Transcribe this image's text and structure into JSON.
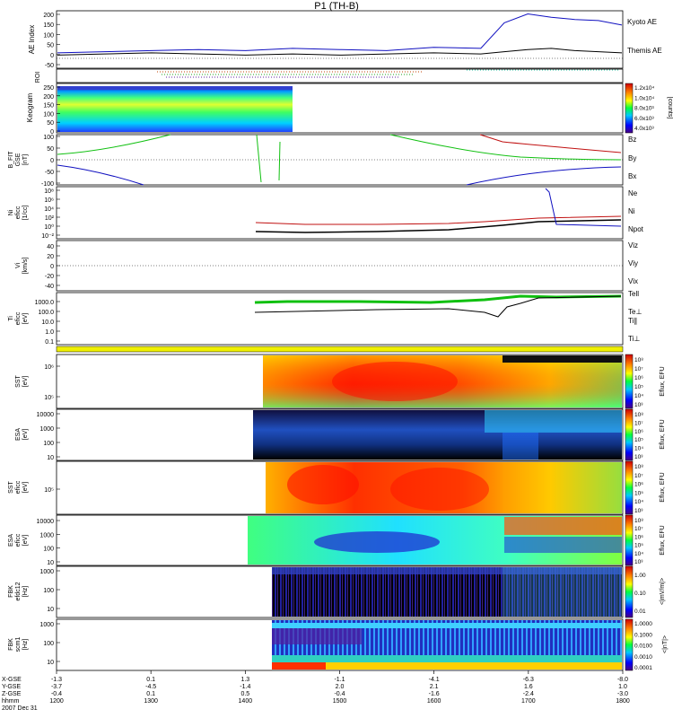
{
  "title": "P1 (TH-B)",
  "colors": {
    "kyoto": "#1010c0",
    "themis": "#000000",
    "bz": "#c01010",
    "by": "#10c010",
    "bx": "#1010c0",
    "ne": "#c01010",
    "npot": "#1010c0",
    "tell": "#000000",
    "tepar": "#10c010"
  },
  "time_axis": {
    "labels": {
      "x": "X-GSE",
      "y": "Y-GSE",
      "z": "Z-GSE",
      "hhmm": "hhmm",
      "date": "2007 Dec 31"
    },
    "ticks": [
      {
        "x": "-1.3",
        "y": "-3.7",
        "z": "-0.4",
        "t": "1200"
      },
      {
        "x": "0.1",
        "y": "-4.5",
        "z": "0.1",
        "t": "1300"
      },
      {
        "x": "1.3",
        "y": "-1.4",
        "z": "0.5",
        "t": "1400"
      },
      {
        "x": "-1.1",
        "y": "2.0",
        "z": "-0.4",
        "t": "1500"
      },
      {
        "x": "-4.1",
        "y": "2.1",
        "z": "-1.6",
        "t": "1600"
      },
      {
        "x": "-6.3",
        "y": "1.6",
        "z": "-2.4",
        "t": "1700"
      },
      {
        "x": "-8.0",
        "y": "1.0",
        "z": "-3.0",
        "t": "1800"
      }
    ]
  },
  "panels": {
    "ae": {
      "ylabel": "AE Index",
      "yticks": [
        "200",
        "150",
        "100",
        "50",
        "0",
        "-50"
      ],
      "legend": [
        "Kyoto AE",
        "Themis AE"
      ]
    },
    "roi": {
      "ylabel": "ROI"
    },
    "keogram": {
      "ylabel": "Keogram",
      "yticks": [
        "250",
        "200",
        "150",
        "100",
        "50",
        "0"
      ],
      "cbar_ticks": [
        "1.2x10⁴",
        "1.0x10⁴",
        "8.0x10³",
        "6.0x10³",
        "4.0x10³"
      ],
      "cbar_label": "[counts]"
    },
    "bfit": {
      "ylabel": "B_FIT",
      "ylabel2": "GSE",
      "ylabel3": "[nT]",
      "yticks": [
        "100",
        "50",
        "0",
        "-50",
        "-100"
      ],
      "legend": [
        "Bz",
        "By",
        "Bx"
      ]
    },
    "ni": {
      "ylabel": "Ni",
      "ylabel2": "eficc",
      "ylabel3": "[1/cc]",
      "yticks": [
        "10⁸",
        "10⁶",
        "10⁴",
        "10²",
        "10⁰",
        "10⁻²"
      ],
      "legend": [
        "Ne",
        "Ni",
        "Npot"
      ]
    },
    "vi": {
      "ylabel": "Vi",
      "ylabel2": "[km/s]",
      "yticks": [
        "40",
        "20",
        "0",
        "-20",
        "-40"
      ],
      "legend": [
        "Viz",
        "Viy",
        "Vix"
      ]
    },
    "ti": {
      "ylabel": "Ti",
      "ylabel2": "eficc",
      "ylabel3": "[eV]",
      "yticks": [
        "1000.0",
        "100.0",
        "10.0",
        "1.0",
        "0.1"
      ],
      "legend": [
        "Tell",
        "Te⊥",
        "Ti∥",
        "Ti⊥"
      ]
    },
    "sst1": {
      "ylabel": "SST",
      "ylabel2": "[eV]",
      "yticks": [
        "10⁶",
        "10⁵"
      ],
      "cbar_ticks": [
        "10⁸",
        "10⁷",
        "10⁶",
        "10⁵",
        "10⁴",
        "10³"
      ],
      "cbar_label": "Eflux, EFU"
    },
    "esa1": {
      "ylabel": "ESA",
      "ylabel2": "[eV]",
      "yticks": [
        "10000",
        "1000",
        "100",
        "10"
      ],
      "cbar_ticks": [
        "10⁸",
        "10⁷",
        "10⁶",
        "10⁵",
        "10⁴",
        "10³"
      ],
      "cbar_label": "Eflux, EFU"
    },
    "sst2": {
      "ylabel": "SST",
      "ylabel2": "eficc",
      "ylabel3": "[eV]",
      "yticks": [
        "10⁵"
      ],
      "cbar_ticks": [
        "10⁸",
        "10⁷",
        "10⁶",
        "10⁵",
        "10⁴",
        "10³"
      ],
      "cbar_label": "Eflux, EFU"
    },
    "esa2": {
      "ylabel": "ESA",
      "ylabel2": "eficc",
      "ylabel3": "[eV]",
      "yticks": [
        "10000",
        "1000",
        "100",
        "10"
      ],
      "cbar_ticks": [
        "10⁸",
        "10⁷",
        "10⁶",
        "10⁵",
        "10⁴",
        "10³"
      ],
      "cbar_label": "Eflux, EFU"
    },
    "fbk1": {
      "ylabel": "FBK",
      "ylabel2": "efdc12",
      "ylabel3": "[Hz]",
      "yticks": [
        "1000",
        "100",
        "10"
      ],
      "cbar_ticks": [
        "1.00",
        "0.10",
        "0.01"
      ],
      "cbar_label": "<|mV/m|>"
    },
    "fbk2": {
      "ylabel": "FBK",
      "ylabel2": "scm1",
      "ylabel3": "[Hz]",
      "yticks": [
        "1000",
        "100",
        "10"
      ],
      "cbar_ticks": [
        "1.0000",
        "0.1000",
        "0.0100",
        "0.0010",
        "0.0001"
      ],
      "cbar_label": "<|nT|>"
    }
  },
  "chart_data": {
    "type": "line",
    "x_unit": "UT hhmm",
    "x_range": [
      "1200",
      "1800"
    ],
    "x": [
      "1200",
      "1230",
      "1300",
      "1330",
      "1400",
      "1430",
      "1500",
      "1530",
      "1600",
      "1630",
      "1645",
      "1700",
      "1715",
      "1730",
      "1745",
      "1800"
    ],
    "series": [
      {
        "name": "Kyoto AE",
        "values": [
          15,
          20,
          25,
          30,
          25,
          35,
          30,
          25,
          40,
          35,
          150,
          190,
          175,
          165,
          160,
          140
        ]
      },
      {
        "name": "Themis AE",
        "values": [
          5,
          10,
          15,
          10,
          5,
          10,
          5,
          10,
          15,
          10,
          20,
          30,
          35,
          25,
          20,
          15
        ]
      }
    ],
    "ylim": [
      -50,
      200
    ]
  }
}
